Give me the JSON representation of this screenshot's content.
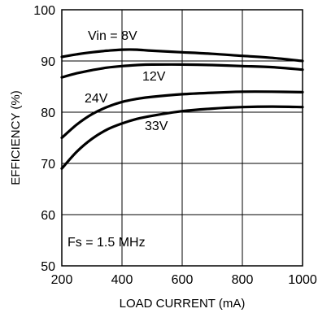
{
  "chart_data": {
    "type": "line",
    "xlabel": "LOAD CURRENT (mA)",
    "ylabel": "EFFICIENCY (%)",
    "xlim": [
      200,
      1000
    ],
    "ylim": [
      50,
      100
    ],
    "x_ticks": [
      "200",
      "400",
      "600",
      "800",
      "1000"
    ],
    "y_ticks": [
      "50",
      "60",
      "70",
      "80",
      "90",
      "100"
    ],
    "grid": true,
    "annotation": "Fs = 1.5 MHz",
    "series": [
      {
        "name": "Vin = 8V",
        "x": [
          200,
          250,
          300,
          350,
          400,
          450,
          500,
          600,
          700,
          800,
          900,
          1000
        ],
        "y": [
          90.8,
          91.3,
          91.7,
          92.0,
          92.2,
          92.2,
          92.0,
          91.7,
          91.4,
          91.0,
          90.6,
          90.0
        ]
      },
      {
        "name": "12V",
        "x": [
          200,
          250,
          300,
          350,
          400,
          450,
          500,
          600,
          700,
          800,
          900,
          1000
        ],
        "y": [
          86.8,
          87.6,
          88.2,
          88.7,
          89.0,
          89.2,
          89.3,
          89.3,
          89.2,
          89.0,
          88.8,
          88.3
        ]
      },
      {
        "name": "24V",
        "x": [
          200,
          250,
          300,
          350,
          400,
          450,
          500,
          600,
          700,
          800,
          900,
          1000
        ],
        "y": [
          75.0,
          77.6,
          79.6,
          81.0,
          82.0,
          82.6,
          83.0,
          83.5,
          83.8,
          84.0,
          84.0,
          83.9
        ]
      },
      {
        "name": "33V",
        "x": [
          200,
          250,
          300,
          350,
          400,
          450,
          500,
          600,
          700,
          800,
          900,
          1000
        ],
        "y": [
          69.0,
          72.3,
          74.8,
          76.6,
          77.8,
          78.7,
          79.3,
          80.2,
          80.7,
          81.0,
          81.1,
          81.0
        ]
      }
    ]
  }
}
